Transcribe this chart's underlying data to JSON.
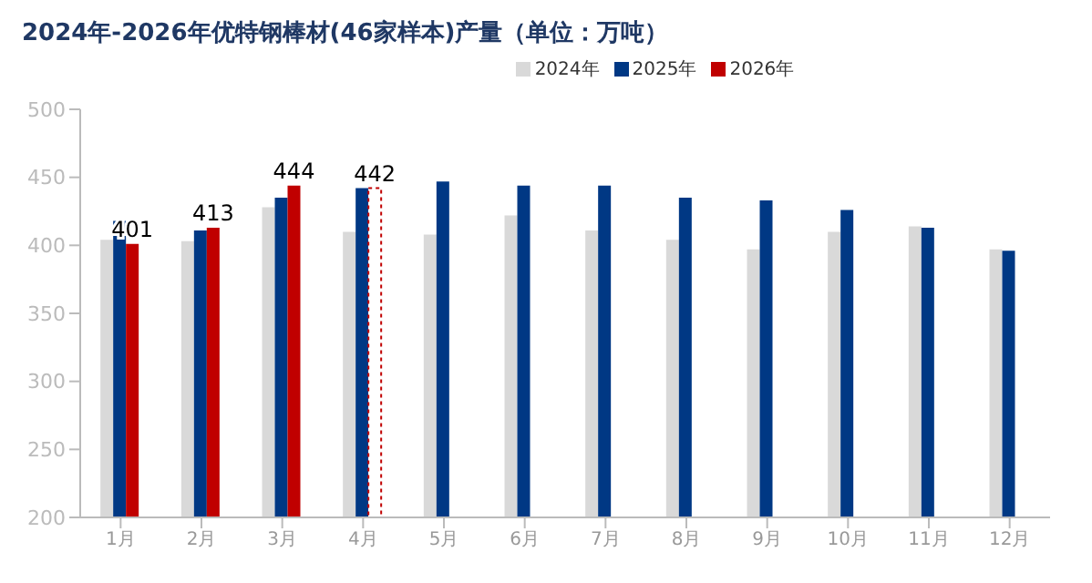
{
  "chart_data": {
    "type": "bar",
    "title": "2024年-2026年优特钢棒材(46家样本)产量（单位：万吨）",
    "categories": [
      "1月",
      "2月",
      "3月",
      "4月",
      "5月",
      "6月",
      "7月",
      "8月",
      "9月",
      "10月",
      "11月",
      "12月"
    ],
    "series": [
      {
        "name": "2024年",
        "color": "#d9d9d9",
        "values": [
          404,
          403,
          428,
          410,
          408,
          422,
          411,
          404,
          397,
          410,
          414,
          397
        ]
      },
      {
        "name": "2025年",
        "color": "#003884",
        "values": [
          418,
          411,
          435,
          442,
          447,
          444,
          444,
          435,
          433,
          426,
          413,
          396
        ]
      },
      {
        "name": "2026年",
        "color": "#c00000",
        "colors": [
          "#c00000",
          "#c00000",
          "#c00000",
          "#ffffff",
          null,
          null,
          null,
          null,
          null,
          null,
          null,
          null
        ],
        "values": [
          401,
          413,
          444,
          442,
          null,
          null,
          null,
          null,
          null,
          null,
          null,
          null
        ],
        "value_labels": [
          "401",
          "413",
          "444",
          "442",
          null,
          null,
          null,
          null,
          null,
          null,
          null,
          null
        ]
      }
    ],
    "ylim": [
      200,
      500
    ],
    "yticks": [
      200,
      250,
      300,
      350,
      400,
      450,
      500
    ],
    "grid": false,
    "legend": "top"
  }
}
